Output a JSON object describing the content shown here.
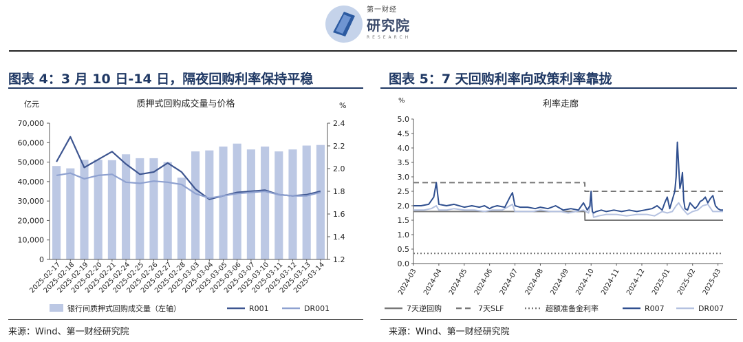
{
  "brand": {
    "line1": "第一财经",
    "line2": "研究院",
    "line3": "RESEARCH"
  },
  "left": {
    "figure_title": "图表 4：3 月 10 日-14 日，隔夜回购利率保持平稳",
    "source": "来源：Wind、第一财经研究院"
  },
  "right": {
    "figure_title": "图表 5：7 天回购利率向政策利率靠拢",
    "source": "来源：Wind、第一财经研究院"
  },
  "chart_data": [
    {
      "type": "bar+line",
      "title": "质押式回购成交量与价格",
      "ylabel_left": "亿元",
      "ylabel_right": "%",
      "ylim_left": [
        0,
        70000
      ],
      "ylim_right": [
        1.2,
        2.4
      ],
      "yticks_left": [
        "0",
        "10,000",
        "20,000",
        "30,000",
        "40,000",
        "50,000",
        "60,000",
        "70,000"
      ],
      "yticks_right": [
        "1.2",
        "1.4",
        "1.6",
        "1.8",
        "2.0",
        "2.2",
        "2.4"
      ],
      "categories": [
        "2025-02-17",
        "2025-02-18",
        "2025-02-19",
        "2025-02-20",
        "2025-02-21",
        "2025-02-24",
        "2025-02-25",
        "2025-02-26",
        "2025-02-27",
        "2025-02-28",
        "2025-03-03",
        "2025-03-04",
        "2025-03-05",
        "2025-03-06",
        "2025-03-07",
        "2025-03-10",
        "2025-03-11",
        "2025-03-12",
        "2025-03-13",
        "2025-03-14"
      ],
      "series": [
        {
          "name": "银行间质押式回购成交量（左轴）",
          "kind": "bar",
          "axis": "left",
          "color": "#bcc8e4",
          "values": [
            48000,
            46800,
            51200,
            51200,
            51000,
            54000,
            52000,
            52000,
            50000,
            42000,
            55500,
            56000,
            58000,
            59500,
            56500,
            58000,
            55500,
            56500,
            58500,
            58800
          ]
        },
        {
          "name": "R001",
          "kind": "line",
          "axis": "right",
          "color": "#3d5590",
          "values": [
            2.06,
            2.28,
            2.01,
            2.08,
            2.15,
            2.04,
            1.95,
            1.97,
            2.05,
            1.97,
            1.82,
            1.73,
            1.76,
            1.79,
            1.8,
            1.81,
            1.77,
            1.76,
            1.77,
            1.8
          ]
        },
        {
          "name": "DR001",
          "kind": "line",
          "axis": "right",
          "color": "#8ea1d0",
          "values": [
            1.94,
            1.96,
            1.91,
            1.94,
            1.95,
            1.88,
            1.87,
            1.89,
            1.88,
            1.86,
            1.78,
            1.74,
            1.76,
            1.78,
            1.79,
            1.8,
            1.77,
            1.76,
            1.76,
            1.79
          ]
        }
      ]
    },
    {
      "type": "line",
      "title": "利率走廊",
      "ylabel": "%",
      "ylim": [
        0.0,
        5.0
      ],
      "yticks": [
        "0.0",
        "0.5",
        "1.0",
        "1.5",
        "2.0",
        "2.5",
        "3.0",
        "3.5",
        "4.0",
        "4.5",
        "5.0"
      ],
      "xlim": [
        0,
        12.2
      ],
      "xticks": [
        "2024-03",
        "2024-04",
        "2024-05",
        "2024-06",
        "2024-07",
        "2024-08",
        "2024-09",
        "2024-10",
        "2024-11",
        "2024-12",
        "2025-01",
        "2025-02",
        "2025-03"
      ],
      "series": [
        {
          "name": "7天逆回购",
          "style": "solid",
          "color": "#777777",
          "x": [
            0,
            6.75,
            6.76,
            12.2
          ],
          "y": [
            1.8,
            1.8,
            1.5,
            1.5
          ]
        },
        {
          "name": "7天SLF",
          "style": "dashed",
          "color": "#777777",
          "x": [
            0,
            6.75,
            6.76,
            12.2
          ],
          "y": [
            2.8,
            2.8,
            2.5,
            2.5
          ]
        },
        {
          "name": "超额准备金利率",
          "style": "dotted",
          "color": "#777777",
          "x": [
            0,
            12.2
          ],
          "y": [
            0.35,
            0.35
          ]
        },
        {
          "name": "R007",
          "style": "solid",
          "color": "#2f4f8f",
          "x": [
            0,
            0.3,
            0.6,
            0.8,
            0.9,
            1.0,
            1.3,
            1.6,
            2.0,
            2.3,
            2.6,
            2.8,
            3.0,
            3.1,
            3.3,
            3.6,
            3.8,
            3.9,
            4.0,
            4.2,
            4.5,
            4.8,
            5.0,
            5.3,
            5.6,
            5.9,
            6.2,
            6.5,
            6.7,
            6.85,
            6.95,
            7.0,
            7.05,
            7.1,
            7.2,
            7.4,
            7.6,
            7.9,
            8.2,
            8.5,
            8.8,
            9.1,
            9.4,
            9.6,
            9.8,
            9.9,
            10.0,
            10.1,
            10.2,
            10.3,
            10.35,
            10.4,
            10.5,
            10.55,
            10.6,
            10.65,
            10.7,
            10.8,
            10.9,
            11.0,
            11.1,
            11.2,
            11.3,
            11.4,
            11.5,
            11.6,
            11.7,
            11.8,
            11.9,
            12.0,
            12.1,
            12.2
          ],
          "y": [
            2.0,
            2.0,
            2.05,
            2.3,
            2.8,
            2.05,
            2.0,
            2.05,
            1.95,
            2.0,
            1.95,
            2.0,
            1.9,
            1.95,
            2.0,
            1.95,
            2.3,
            2.45,
            2.0,
            1.95,
            1.95,
            1.9,
            1.95,
            1.9,
            2.0,
            1.85,
            1.9,
            1.85,
            2.1,
            1.85,
            2.0,
            2.5,
            1.8,
            1.75,
            1.8,
            1.85,
            1.8,
            1.85,
            1.8,
            1.85,
            1.8,
            1.85,
            1.9,
            2.0,
            1.85,
            2.1,
            2.3,
            1.9,
            2.2,
            2.5,
            3.0,
            4.2,
            2.6,
            2.8,
            3.15,
            2.2,
            1.9,
            1.85,
            2.1,
            2.0,
            1.9,
            2.0,
            2.15,
            2.2,
            2.3,
            2.1,
            2.25,
            2.35,
            2.0,
            1.9,
            1.85,
            1.85
          ]
        },
        {
          "name": "DR007",
          "style": "solid",
          "color": "#b4c1e0",
          "x": [
            0,
            0.4,
            0.7,
            0.9,
            1.0,
            1.3,
            1.6,
            2.0,
            2.4,
            2.8,
            3.1,
            3.5,
            3.8,
            3.9,
            4.0,
            4.3,
            4.7,
            5.0,
            5.4,
            5.8,
            6.1,
            6.4,
            6.7,
            6.9,
            7.0,
            7.1,
            7.3,
            7.6,
            8.0,
            8.4,
            8.8,
            9.2,
            9.5,
            9.8,
            10.0,
            10.2,
            10.35,
            10.45,
            10.6,
            10.8,
            11.0,
            11.2,
            11.4,
            11.6,
            11.8,
            12.0,
            12.2
          ],
          "y": [
            1.85,
            1.85,
            1.9,
            2.0,
            1.85,
            1.85,
            1.9,
            1.85,
            1.85,
            1.8,
            1.85,
            1.85,
            2.0,
            2.05,
            1.8,
            1.8,
            1.8,
            1.85,
            1.8,
            1.8,
            1.75,
            1.8,
            1.85,
            1.75,
            2.1,
            1.6,
            1.65,
            1.7,
            1.7,
            1.65,
            1.7,
            1.7,
            1.65,
            1.8,
            1.75,
            1.8,
            2.0,
            2.1,
            1.9,
            1.7,
            1.8,
            1.85,
            2.0,
            2.05,
            1.8,
            1.8,
            1.8
          ]
        }
      ]
    }
  ]
}
